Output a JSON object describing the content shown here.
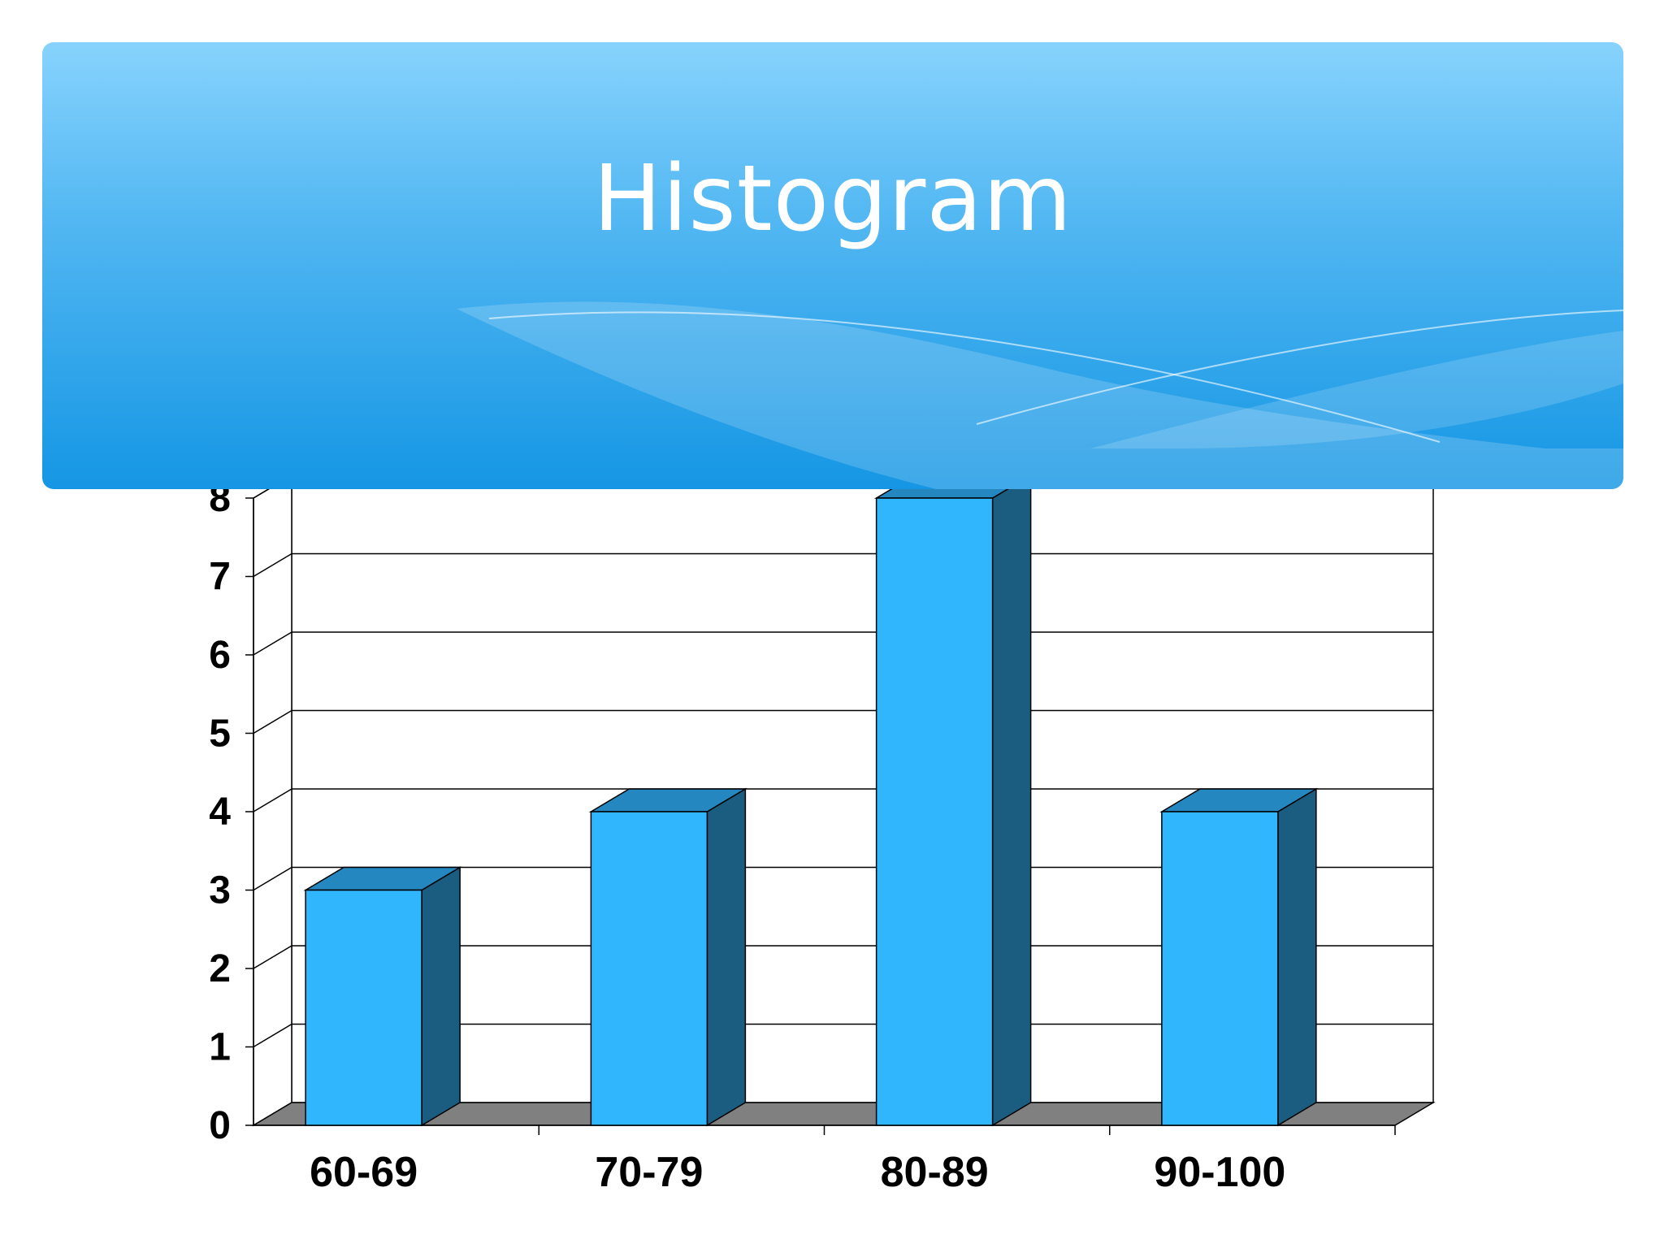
{
  "slide": {
    "title": "Histogram"
  },
  "colors": {
    "bar_front": "#2fb6fd",
    "bar_side": "#1b5d80",
    "bar_top": "#2487c0",
    "floor": "#808080",
    "banner_top": "#87d3fd",
    "banner_bottom": "#1596e4"
  },
  "chart_data": {
    "type": "bar",
    "title": "",
    "xlabel": "",
    "ylabel": "",
    "categories": [
      "60-69",
      "70-79",
      "80-89",
      "90-100"
    ],
    "values": [
      3,
      4,
      8,
      4
    ],
    "ylim": [
      0,
      8
    ],
    "yticks": [
      "0",
      "1",
      "2",
      "3",
      "4",
      "5",
      "6",
      "7",
      "8"
    ],
    "grid": true,
    "legend": "none",
    "style": "3d"
  }
}
